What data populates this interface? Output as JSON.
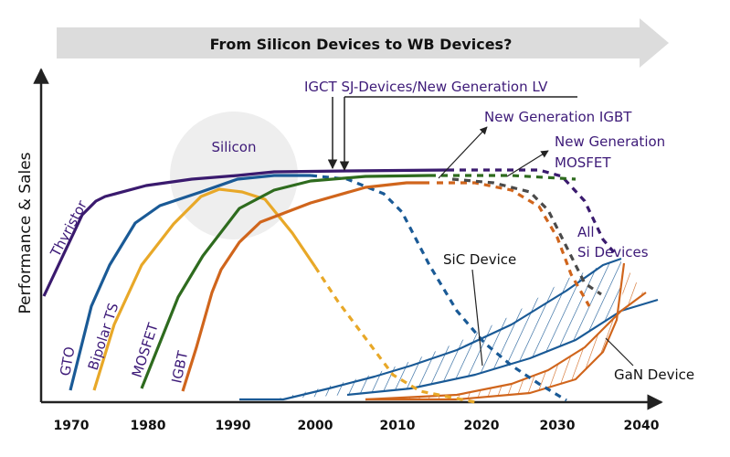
{
  "banner": {
    "title": "From Silicon Devices to WB Devices?"
  },
  "axes": {
    "ylabel": "Performance & Sales",
    "xticks": [
      "1970",
      "1980",
      "1990",
      "2000",
      "2010",
      "2020",
      "2030",
      "2040"
    ]
  },
  "region_label": "Silicon",
  "devices": {
    "thyristor": "Thyristor",
    "gto": "GTO",
    "bipolar": "Bipolar TS",
    "mosfet": "MOSFET",
    "igbt": "IGBT"
  },
  "annotations": {
    "igct": "IGCT SJ-Devices/New Generation LV",
    "ng_igbt": "New Generation IGBT",
    "ng_mosfet_1": "New Generation",
    "ng_mosfet_2": "MOSFET",
    "all_si_1": "All",
    "all_si_2": "Si Devices",
    "sic": "SiC Device",
    "gan": "GaN Device"
  },
  "colors": {
    "thyristor": "#3a1a6e",
    "gto": "#1a5a96",
    "bipolar": "#e8a828",
    "mosfet": "#2e6b1e",
    "igbt": "#d0651c",
    "other_si": "#4a4a4a",
    "label": "#3d1a78"
  }
}
